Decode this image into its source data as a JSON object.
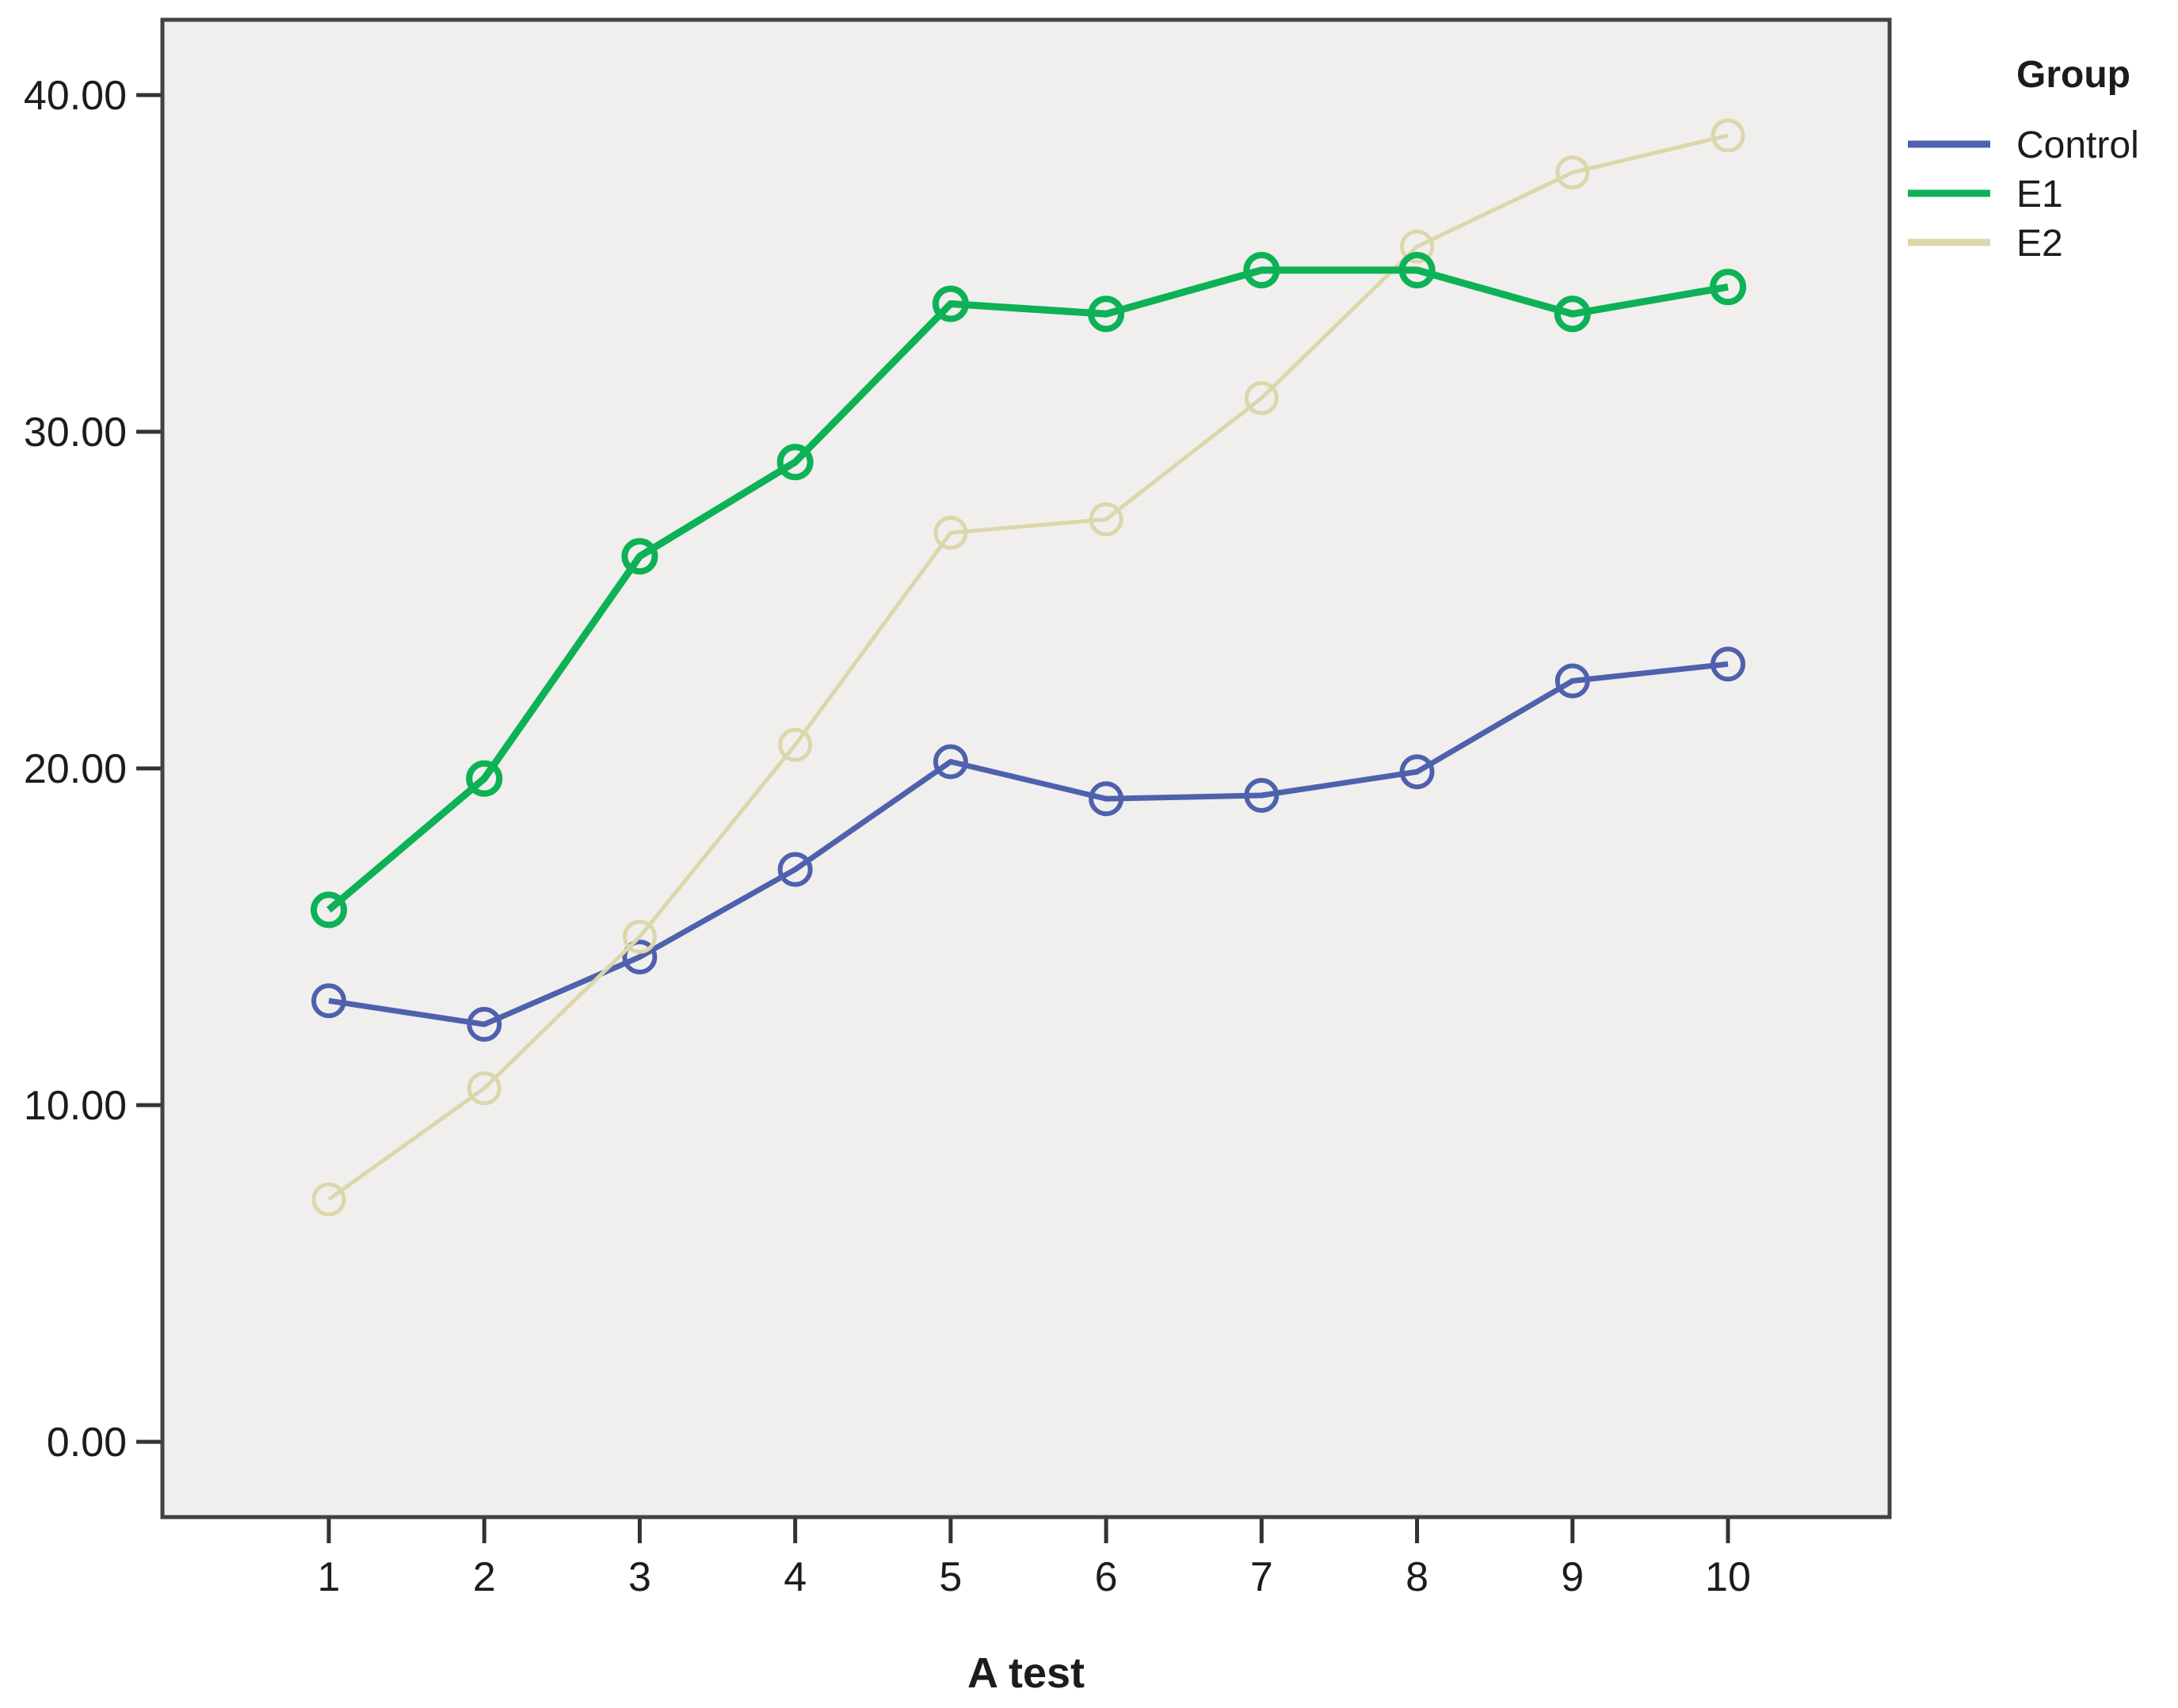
{
  "figure": {
    "legend_title": "Group"
  },
  "chart_data": {
    "type": "line",
    "title": "",
    "xlabel": "A test",
    "ylabel": "",
    "x": [
      1,
      2,
      3,
      4,
      5,
      6,
      7,
      8,
      9,
      10
    ],
    "x_tick_labels": [
      "1",
      "2",
      "3",
      "4",
      "5",
      "6",
      "7",
      "8",
      "9",
      "10"
    ],
    "y_ticks": [
      0,
      10,
      20,
      30,
      40
    ],
    "y_tick_labels": [
      "0.00",
      "10.00",
      "20.00",
      "30.00",
      "40.00"
    ],
    "ylim": [
      0,
      40
    ],
    "grid": false,
    "legend_position": "right-top",
    "legend_title": "Group",
    "series": [
      {
        "name": "Control",
        "color": "#4e61ad",
        "line_width": 7,
        "values": [
          13.1,
          12.4,
          14.4,
          17.0,
          20.2,
          19.1,
          19.2,
          19.9,
          22.6,
          23.1
        ]
      },
      {
        "name": "E1",
        "color": "#0db156",
        "line_width": 9,
        "values": [
          15.8,
          19.7,
          26.3,
          29.1,
          33.8,
          33.5,
          34.8,
          34.8,
          33.5,
          34.3
        ]
      },
      {
        "name": "E2",
        "color": "#dcd7ab",
        "line_width": 5,
        "values": [
          7.2,
          10.5,
          15.0,
          20.7,
          27.0,
          27.4,
          31.0,
          35.5,
          37.7,
          38.8
        ]
      }
    ]
  },
  "colors": {
    "plot_background": "#f0efed",
    "plot_border": "#424242",
    "tick": "#333333",
    "text": "#1c1c1c",
    "page_background": "#ffffff"
  }
}
